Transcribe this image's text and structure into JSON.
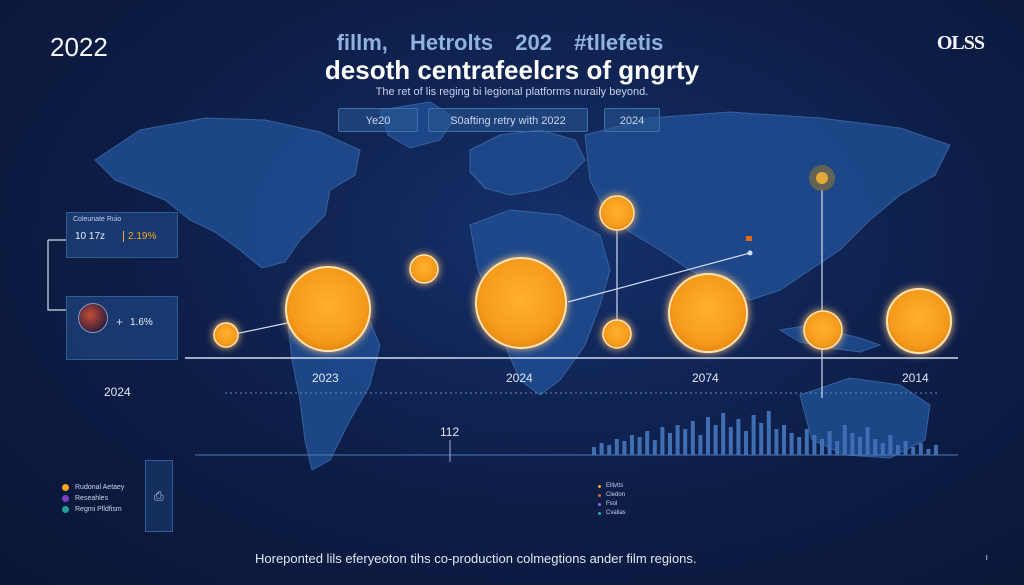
{
  "header": {
    "year": "2022",
    "title_line_1": [
      "fillm,",
      "Hetrolts",
      "202",
      "#tllefetis"
    ],
    "title_line_2": "desoth centrafeelcrs of gngrty",
    "subtitle": "The ret of lis reging bi legional platforms nuraily beyond.",
    "brand": "OLSS"
  },
  "tabs": [
    "Ye20",
    "S0afting retry with 2022",
    "2024"
  ],
  "cards": {
    "stat": {
      "title": "Coleunate Ruio",
      "value_a": "10 17z",
      "value_b": "2.19%"
    },
    "profile": {
      "value": "1.6%"
    }
  },
  "timeline": {
    "labels": [
      "2023",
      "2024",
      "2074",
      "2014"
    ],
    "left_year": "2024",
    "mid_value": "112"
  },
  "legend_left": [
    {
      "label": "Rudonal Aetaey",
      "color": "#f5a623"
    },
    {
      "label": "Reseahles",
      "color": "#7b3fc4"
    },
    {
      "label": "Regmi Plldfism",
      "color": "#1f9e9a"
    }
  ],
  "legend_right": [
    {
      "label": "Elllvtts",
      "color": "#f5a623"
    },
    {
      "label": "Cledon",
      "color": "#e0574b"
    },
    {
      "label": "Fsol",
      "color": "#9e5fd6"
    },
    {
      "label": "Cvalias",
      "color": "#1fb3a4"
    }
  ],
  "footer": {
    "caption": "Horeponted lils eferyeoton tihs co-production colmegtions ander film regions.",
    "page_mark": "ı"
  },
  "colors": {
    "background": "#0c1a3e",
    "accent": "#f5a623",
    "line": "#cfdcf1"
  }
}
